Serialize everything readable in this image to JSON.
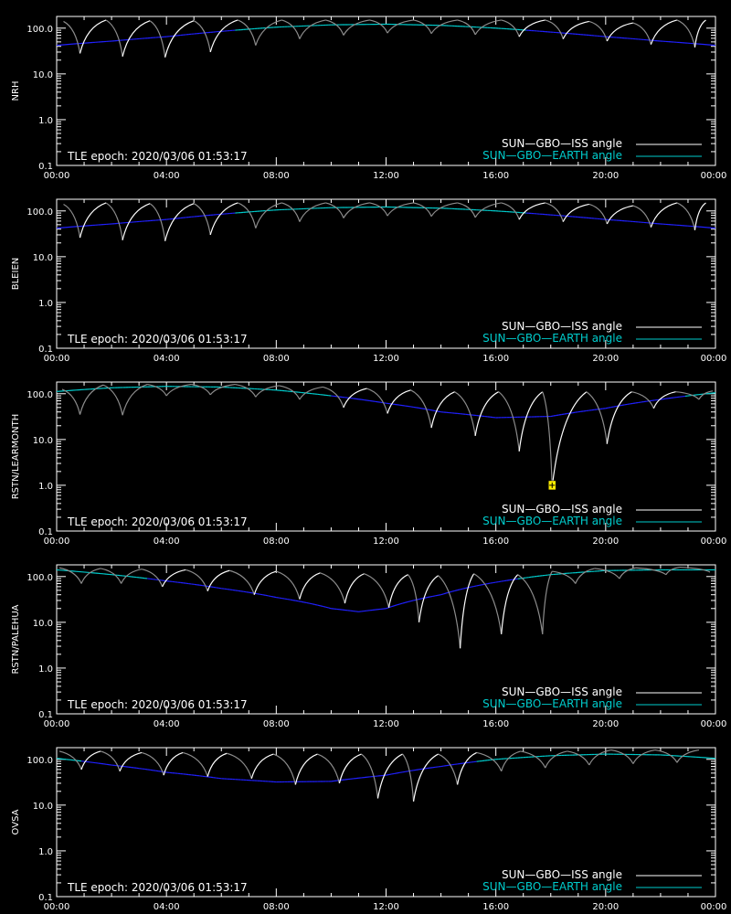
{
  "colors": {
    "background": "#000000",
    "axes": "#ffffff",
    "iss_sunlit": "#ffffff",
    "iss_shadow": "#8c8c8c",
    "earth_sunlit": "#00cccc",
    "earth_shadow": "#2020ff",
    "marker": "#ffee00"
  },
  "chart_data": [
    {
      "type": "line",
      "ylabel": "NRH",
      "yscale": "log",
      "ylim": [
        0.1,
        180
      ],
      "xlim_hours": [
        0,
        24
      ],
      "x_ticks": [
        "00:00",
        "04:00",
        "08:00",
        "12:00",
        "16:00",
        "20:00",
        "00:00"
      ],
      "y_ticks": [
        "0.1",
        "1.0",
        "10.0",
        "100.0"
      ],
      "annotation": "TLE epoch: 2020/03/06 01:53:17",
      "legend": [
        "SUN—GBO—ISS angle",
        "SUN—GBO—EARTH angle"
      ],
      "series": [
        {
          "name": "SUN—GBO—ISS angle",
          "x": [
            0.25,
            0.85,
            1.8,
            2.4,
            3.4,
            3.95,
            5.0,
            5.6,
            6.6,
            7.25,
            8.2,
            8.85,
            9.8,
            10.45,
            11.4,
            12.05,
            13.0,
            13.65,
            14.6,
            15.25,
            16.2,
            16.85,
            17.8,
            18.45,
            19.4,
            20.05,
            21.0,
            21.65,
            22.6,
            23.25,
            23.65
          ],
          "y": [
            140,
            28,
            150,
            24,
            145,
            23,
            145,
            30,
            150,
            42,
            150,
            58,
            150,
            70,
            150,
            78,
            150,
            76,
            150,
            72,
            150,
            65,
            150,
            58,
            140,
            52,
            130,
            44,
            150,
            38,
            150
          ]
        },
        {
          "name": "SUN—GBO—EARTH angle",
          "x": [
            0,
            2,
            4,
            6,
            8,
            10,
            12,
            14,
            16,
            18,
            20,
            22,
            24
          ],
          "y": [
            42,
            52,
            65,
            85,
            105,
            118,
            122,
            115,
            100,
            82,
            65,
            52,
            42
          ]
        }
      ]
    },
    {
      "type": "line",
      "ylabel": "BLEIEN",
      "yscale": "log",
      "ylim": [
        0.1,
        180
      ],
      "xlim_hours": [
        0,
        24
      ],
      "x_ticks": [
        "00:00",
        "04:00",
        "08:00",
        "12:00",
        "16:00",
        "20:00",
        "00:00"
      ],
      "y_ticks": [
        "0.1",
        "1.0",
        "10.0",
        "100.0"
      ],
      "annotation": "TLE epoch: 2020/03/06 01:53:17",
      "legend": [
        "SUN—GBO—ISS angle",
        "SUN—GBO—EARTH angle"
      ],
      "series": [
        {
          "name": "SUN—GBO—ISS angle",
          "x": [
            0.25,
            0.85,
            1.8,
            2.4,
            3.4,
            3.95,
            5.0,
            5.6,
            6.6,
            7.25,
            8.2,
            8.85,
            9.8,
            10.45,
            11.4,
            12.05,
            13.0,
            13.65,
            14.6,
            15.25,
            16.2,
            16.85,
            17.8,
            18.45,
            19.4,
            20.05,
            21.0,
            21.65,
            22.6,
            23.25,
            23.65
          ],
          "y": [
            140,
            26,
            150,
            23,
            145,
            22,
            145,
            30,
            150,
            42,
            150,
            58,
            150,
            70,
            150,
            78,
            150,
            76,
            150,
            72,
            150,
            65,
            150,
            58,
            140,
            52,
            130,
            44,
            150,
            38,
            150
          ]
        },
        {
          "name": "SUN—GBO—EARTH angle",
          "x": [
            0,
            2,
            4,
            6,
            8,
            10,
            12,
            14,
            16,
            18,
            20,
            22,
            24
          ],
          "y": [
            42,
            52,
            65,
            85,
            105,
            118,
            122,
            115,
            100,
            82,
            65,
            52,
            42
          ]
        }
      ]
    },
    {
      "type": "line",
      "ylabel": "RSTN/LEARMONTH",
      "yscale": "log",
      "ylim": [
        0.1,
        180
      ],
      "xlim_hours": [
        0,
        24
      ],
      "x_ticks": [
        "00:00",
        "04:00",
        "08:00",
        "12:00",
        "16:00",
        "20:00",
        "00:00"
      ],
      "y_ticks": [
        "0.1",
        "1.0",
        "10.0",
        "100.0"
      ],
      "annotation": "TLE epoch: 2020/03/06 01:53:17",
      "legend": [
        "SUN—GBO—ISS angle",
        "SUN—GBO—EARTH angle"
      ],
      "marker": {
        "x": 18.05,
        "y": 1.0
      },
      "series": [
        {
          "name": "SUN—GBO—ISS angle",
          "x": [
            0.2,
            0.85,
            1.7,
            2.4,
            3.3,
            4.0,
            4.9,
            5.6,
            6.5,
            7.25,
            8.1,
            8.85,
            9.7,
            10.45,
            11.3,
            12.05,
            12.9,
            13.65,
            14.5,
            15.25,
            16.1,
            16.85,
            17.7,
            18.05,
            19.3,
            20.05,
            20.95,
            21.75,
            22.55,
            23.4,
            23.9
          ],
          "y": [
            125,
            35,
            155,
            34,
            160,
            90,
            160,
            95,
            160,
            85,
            150,
            75,
            140,
            50,
            130,
            37,
            120,
            18,
            110,
            12,
            110,
            5.5,
            110,
            0.9,
            110,
            8,
            110,
            48,
            110,
            75,
            115
          ]
        },
        {
          "name": "SUN—GBO—EARTH angle",
          "x": [
            0,
            2,
            4,
            6,
            8,
            10,
            12,
            14,
            16,
            18,
            20,
            22,
            24
          ],
          "y": [
            112,
            135,
            145,
            140,
            120,
            90,
            62,
            40,
            30,
            32,
            48,
            75,
            105
          ]
        }
      ]
    },
    {
      "type": "line",
      "ylabel": "RSTN/PALEHUA",
      "yscale": "log",
      "ylim": [
        0.1,
        180
      ],
      "xlim_hours": [
        0,
        24
      ],
      "x_ticks": [
        "00:00",
        "04:00",
        "08:00",
        "12:00",
        "16:00",
        "20:00",
        "00:00"
      ],
      "y_ticks": [
        "0.1",
        "1.0",
        "10.0",
        "100.0"
      ],
      "annotation": "TLE epoch: 2020/03/06 01:53:17",
      "legend": [
        "SUN—GBO—ISS angle",
        "SUN—GBO—EARTH angle"
      ],
      "series": [
        {
          "name": "SUN—GBO—ISS angle",
          "x": [
            0.1,
            0.9,
            1.6,
            2.35,
            3.1,
            3.85,
            4.7,
            5.5,
            6.3,
            7.2,
            8.0,
            8.85,
            9.6,
            10.5,
            11.2,
            12.1,
            12.8,
            13.2,
            13.9,
            14.7,
            15.2,
            16.2,
            16.8,
            17.7,
            18.05,
            18.9,
            19.6,
            20.5,
            21.1,
            22.2,
            22.7,
            23.8
          ],
          "y": [
            155,
            70,
            150,
            70,
            145,
            60,
            140,
            48,
            135,
            40,
            130,
            32,
            120,
            26,
            115,
            21,
            110,
            10,
            105,
            2.7,
            115,
            5.5,
            110,
            5.5,
            130,
            70,
            150,
            90,
            155,
            110,
            160,
            125
          ]
        },
        {
          "name": "SUN—GBO—EARTH angle",
          "x": [
            0,
            2,
            4,
            6,
            8,
            10,
            11,
            12,
            14,
            16,
            18,
            20,
            22,
            24
          ],
          "y": [
            140,
            110,
            80,
            55,
            35,
            20,
            17,
            20,
            40,
            75,
            110,
            135,
            140,
            140
          ]
        }
      ]
    },
    {
      "type": "line",
      "ylabel": "OVSA",
      "yscale": "log",
      "ylim": [
        0.1,
        180
      ],
      "xlim_hours": [
        0,
        24
      ],
      "x_ticks": [
        "00:00",
        "04:00",
        "08:00",
        "12:00",
        "16:00",
        "20:00",
        "00:00"
      ],
      "y_ticks": [
        "0.1",
        "1.0",
        "10.0",
        "100.0"
      ],
      "annotation": "TLE epoch: 2020/03/06 01:53:17",
      "legend": [
        "SUN—GBO—ISS angle",
        "SUN—GBO—EARTH angle"
      ],
      "series": [
        {
          "name": "SUN—GBO—ISS angle",
          "x": [
            0.1,
            0.9,
            1.6,
            2.3,
            3.1,
            3.9,
            4.6,
            5.5,
            6.2,
            7.1,
            7.9,
            8.7,
            9.5,
            10.3,
            11.1,
            11.7,
            12.6,
            13.0,
            13.9,
            14.6,
            15.3,
            16.2,
            16.9,
            17.8,
            18.6,
            19.4,
            20.2,
            21.0,
            21.8,
            22.6,
            23.4
          ],
          "y": [
            150,
            60,
            150,
            55,
            140,
            45,
            140,
            42,
            135,
            38,
            130,
            28,
            130,
            30,
            130,
            14,
            130,
            12,
            130,
            28,
            140,
            55,
            150,
            65,
            150,
            75,
            160,
            80,
            160,
            85,
            160
          ]
        },
        {
          "name": "SUN—GBO—EARTH angle",
          "x": [
            0,
            2,
            4,
            6,
            8,
            10,
            12,
            14,
            16,
            18,
            20,
            22,
            24
          ],
          "y": [
            105,
            75,
            52,
            38,
            32,
            33,
            45,
            70,
            100,
            120,
            130,
            125,
            105
          ]
        }
      ]
    }
  ]
}
